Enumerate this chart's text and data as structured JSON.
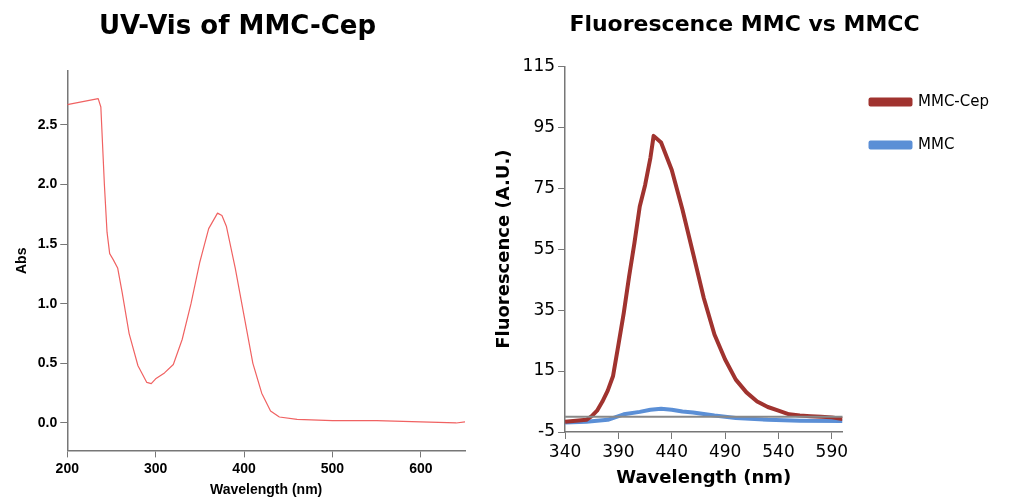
{
  "chart_data": [
    {
      "type": "line",
      "title": "UV-Vis of MMC-Cep",
      "xlabel": "Wavelength (nm)",
      "ylabel": "Abs",
      "xlim": [
        200,
        650
      ],
      "ylim": [
        -0.23,
        2.95
      ],
      "xticks": [
        200,
        300,
        400,
        500,
        600
      ],
      "yticks": [
        {
          "value": 0,
          "label": "0.0"
        },
        {
          "value": 0.5,
          "label": "0.5"
        },
        {
          "value": 1,
          "label": "1.0"
        },
        {
          "value": 1.5,
          "label": "1.5"
        },
        {
          "value": 2,
          "label": "2.0"
        },
        {
          "value": 2.5,
          "label": "2.5"
        }
      ],
      "marker": "none",
      "line_style": "solid",
      "grid": false,
      "legend": false,
      "x": [
        200,
        235,
        238,
        242,
        245,
        248,
        252,
        257,
        262,
        270,
        280,
        290,
        295,
        300,
        310,
        320,
        330,
        340,
        350,
        360,
        370,
        375,
        380,
        390,
        400,
        410,
        420,
        430,
        440,
        460,
        500,
        550,
        600,
        640,
        650
      ],
      "series": [
        {
          "color": "#f06262",
          "values": [
            2.67,
            2.72,
            2.65,
            2.0,
            1.6,
            1.42,
            1.37,
            1.3,
            1.1,
            0.75,
            0.48,
            0.34,
            0.33,
            0.37,
            0.42,
            0.49,
            0.7,
            1.0,
            1.35,
            1.63,
            1.76,
            1.74,
            1.65,
            1.3,
            0.9,
            0.5,
            0.25,
            0.1,
            0.05,
            0.03,
            0.02,
            0.02,
            0.01,
            0.0,
            0.01
          ]
        }
      ]
    },
    {
      "type": "line",
      "title": "Fluorescence MMC vs MMCC",
      "xlabel": "Wavelength (nm)",
      "ylabel": "Fluorescence (A.U.)",
      "xlim": [
        340,
        600
      ],
      "ylim": [
        -5,
        115
      ],
      "xticks": [
        340,
        390,
        440,
        490,
        540,
        590
      ],
      "yticks": [
        -5,
        15,
        35,
        55,
        75,
        95,
        115
      ],
      "marker": "none",
      "line_style": "solid",
      "grid": false,
      "legend": "right",
      "ref_lines": [
        {
          "axis": "y",
          "value": 0,
          "color": "#888888"
        }
      ],
      "series": [
        {
          "name": "MMC-Cep",
          "color": "#a0332f",
          "x": [
            340,
            360,
            365,
            370,
            375,
            380,
            385,
            390,
            395,
            400,
            405,
            410,
            415,
            420,
            423,
            430,
            440,
            450,
            460,
            470,
            480,
            490,
            500,
            510,
            520,
            530,
            540,
            550,
            560,
            570,
            580,
            590,
            600
          ],
          "values": [
            -1.6,
            -1,
            0.2,
            2,
            5,
            8.6,
            13.4,
            23.6,
            34,
            46,
            57,
            69,
            76,
            85,
            92.2,
            90,
            81,
            68,
            53.6,
            39,
            27,
            18.8,
            12.2,
            8,
            5,
            3.2,
            2,
            0.8,
            0.4,
            0.2,
            0,
            -0.2,
            -0.7
          ]
        },
        {
          "name": "MMC",
          "color": "#5b8fd6",
          "x": [
            340,
            360,
            380,
            395,
            410,
            420,
            430,
            440,
            450,
            460,
            480,
            500,
            530,
            560,
            600
          ],
          "values": [
            -1.9,
            -1.6,
            -1,
            0.8,
            1.6,
            2.3,
            2.6,
            2.3,
            1.7,
            1.4,
            0.4,
            -0.4,
            -1,
            -1.3,
            -1.4
          ]
        }
      ]
    }
  ]
}
